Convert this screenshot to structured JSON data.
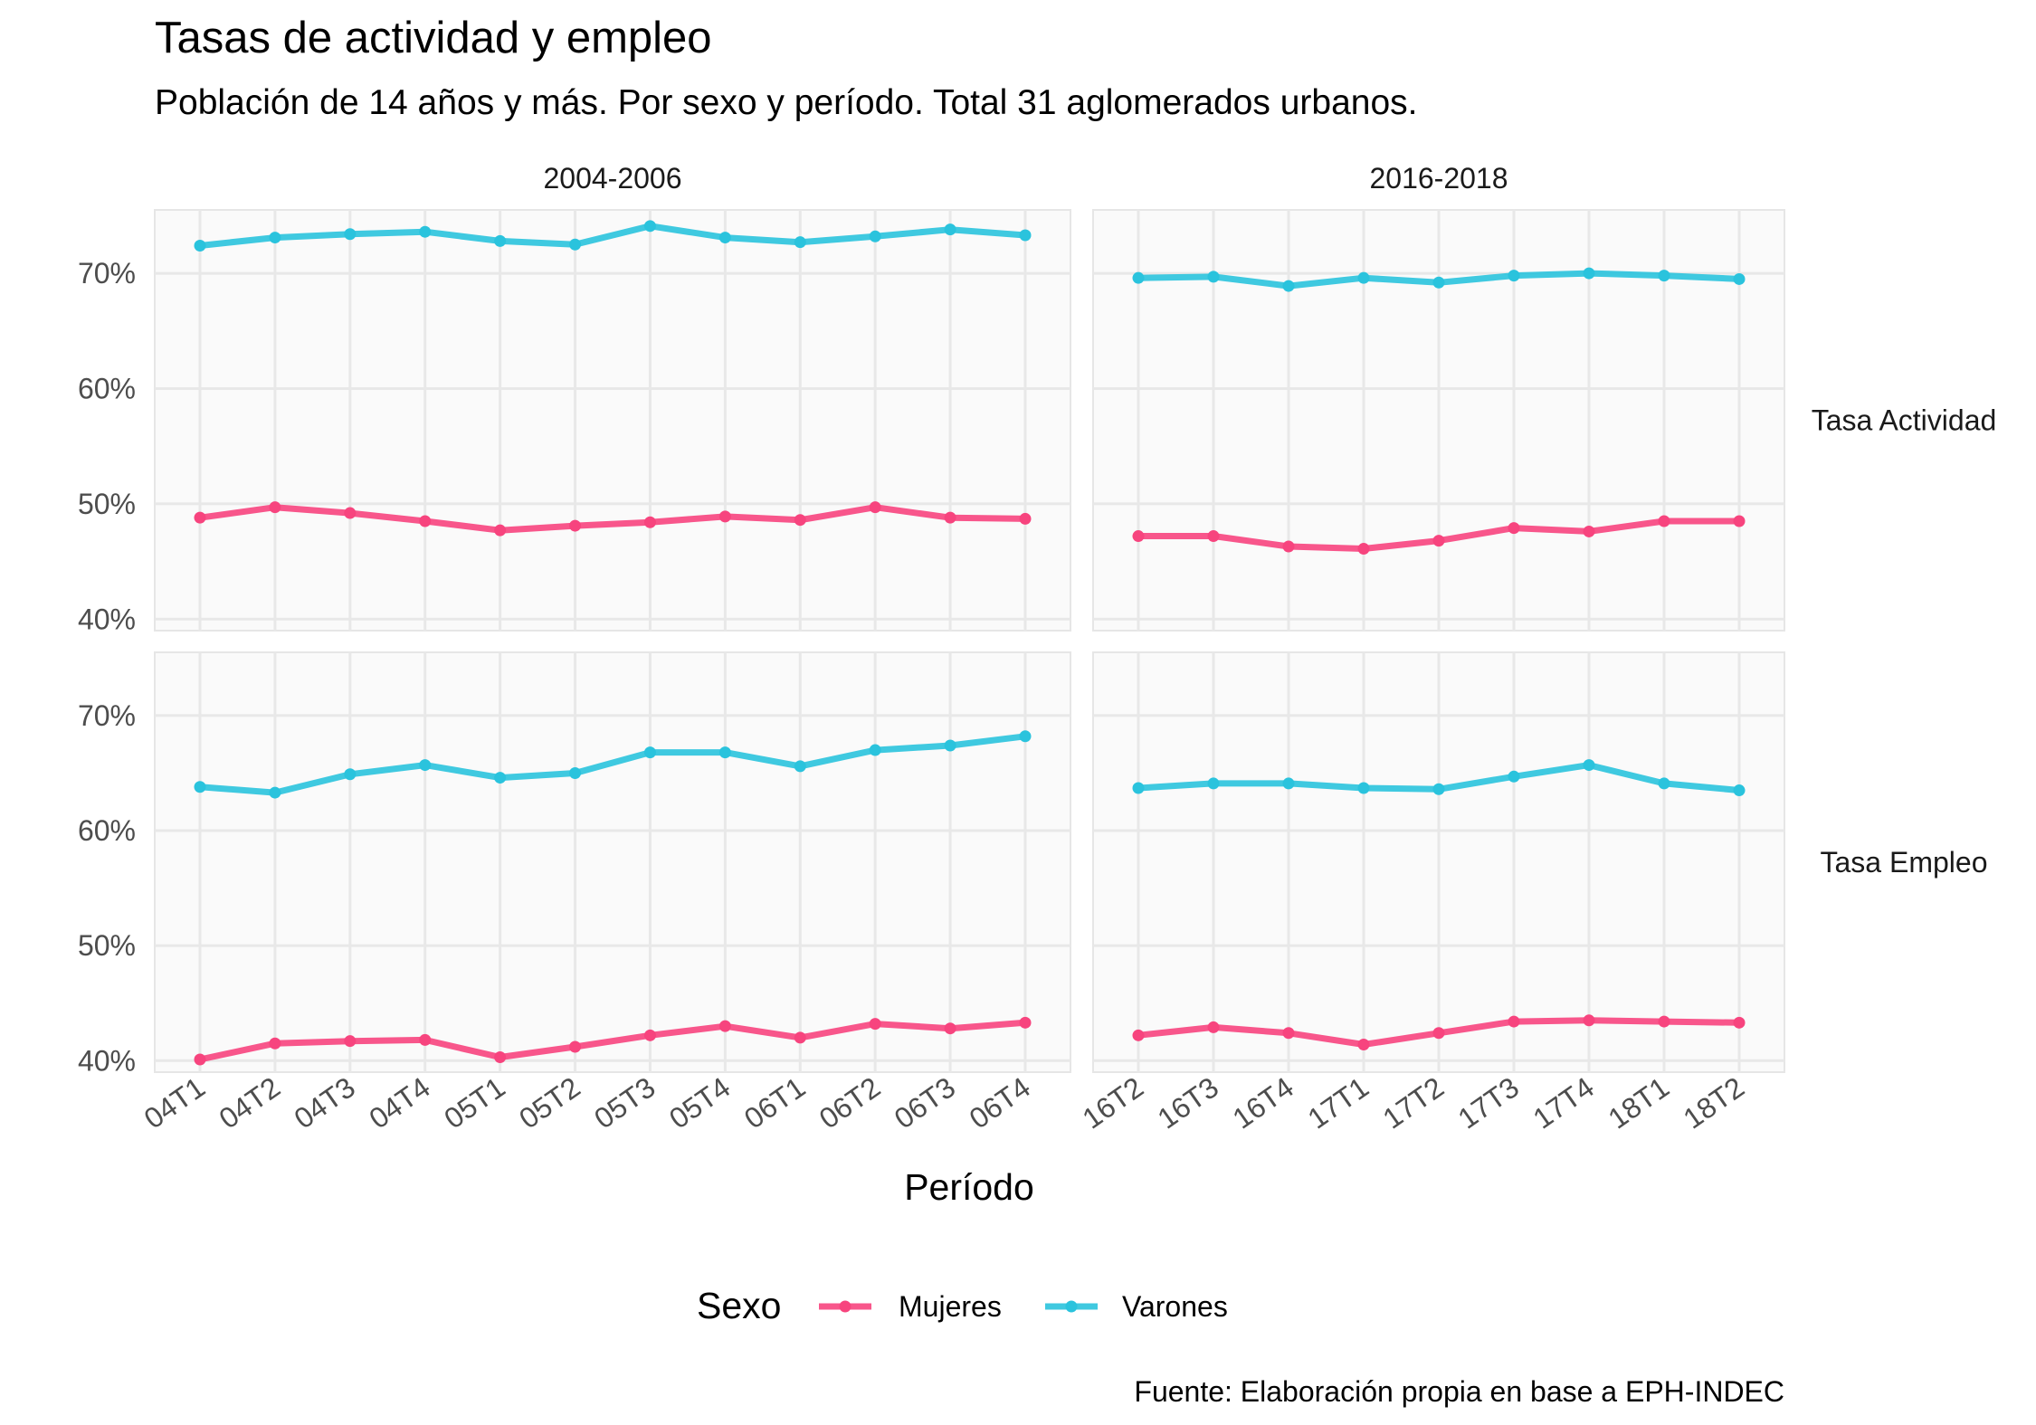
{
  "chart_data": {
    "type": "line",
    "title": "Tasas de actividad y empleo",
    "subtitle": "Población de 14 años y más. Por sexo y período. Total 31 aglomerados urbanos.",
    "xlabel": "Período",
    "ylabel": "",
    "caption": "Fuente: Elaboración propia en base a EPH-INDEC",
    "legend": {
      "title": "Sexo",
      "position": "bottom"
    },
    "grid": true,
    "ylim": [
      39,
      75.5
    ],
    "y_ticks": [
      40,
      50,
      60,
      70
    ],
    "y_tick_labels": [
      "40%",
      "50%",
      "60%",
      "70%"
    ],
    "series_styles": [
      {
        "name": "Mujeres",
        "color": "#f7447e"
      },
      {
        "name": "Varones",
        "color": "#2ac3dd"
      }
    ],
    "columns": [
      {
        "label": "2004-2006",
        "categories": [
          "04T1",
          "04T2",
          "04T3",
          "04T4",
          "05T1",
          "05T2",
          "05T3",
          "05T4",
          "06T1",
          "06T2",
          "06T3",
          "06T4"
        ]
      },
      {
        "label": "2016-2018",
        "categories": [
          "16T2",
          "16T3",
          "16T4",
          "17T1",
          "17T2",
          "17T3",
          "17T4",
          "18T1",
          "18T2"
        ]
      }
    ],
    "rows": [
      {
        "label": "Tasa Actividad"
      },
      {
        "label": "Tasa Empleo"
      }
    ],
    "panels": [
      {
        "row": 0,
        "col": 0,
        "series": [
          {
            "name": "Mujeres",
            "values": [
              48.8,
              49.7,
              49.2,
              48.5,
              47.7,
              48.1,
              48.4,
              48.9,
              48.6,
              49.7,
              48.8,
              48.7
            ]
          },
          {
            "name": "Varones",
            "values": [
              72.4,
              73.1,
              73.4,
              73.6,
              72.8,
              72.5,
              74.1,
              73.1,
              72.7,
              73.2,
              73.8,
              73.3
            ]
          }
        ]
      },
      {
        "row": 0,
        "col": 1,
        "series": [
          {
            "name": "Mujeres",
            "values": [
              47.2,
              47.2,
              46.3,
              46.1,
              46.8,
              47.9,
              47.6,
              48.5,
              48.5
            ]
          },
          {
            "name": "Varones",
            "values": [
              69.6,
              69.7,
              68.9,
              69.6,
              69.2,
              69.8,
              70.0,
              69.8,
              69.5
            ]
          }
        ]
      },
      {
        "row": 1,
        "col": 0,
        "series": [
          {
            "name": "Mujeres",
            "values": [
              40.1,
              41.5,
              41.7,
              41.8,
              40.3,
              41.2,
              42.2,
              43.0,
              42.0,
              43.2,
              42.8,
              43.3
            ]
          },
          {
            "name": "Varones",
            "values": [
              63.8,
              63.3,
              64.9,
              65.7,
              64.6,
              65.0,
              66.8,
              66.8,
              65.6,
              67.0,
              67.4,
              68.2
            ]
          }
        ]
      },
      {
        "row": 1,
        "col": 1,
        "series": [
          {
            "name": "Mujeres",
            "values": [
              42.2,
              42.9,
              42.4,
              41.4,
              42.4,
              43.4,
              43.5,
              43.4,
              43.3
            ]
          },
          {
            "name": "Varones",
            "values": [
              63.7,
              64.1,
              64.1,
              63.7,
              63.6,
              64.7,
              65.7,
              64.1,
              63.5
            ]
          }
        ]
      }
    ]
  }
}
